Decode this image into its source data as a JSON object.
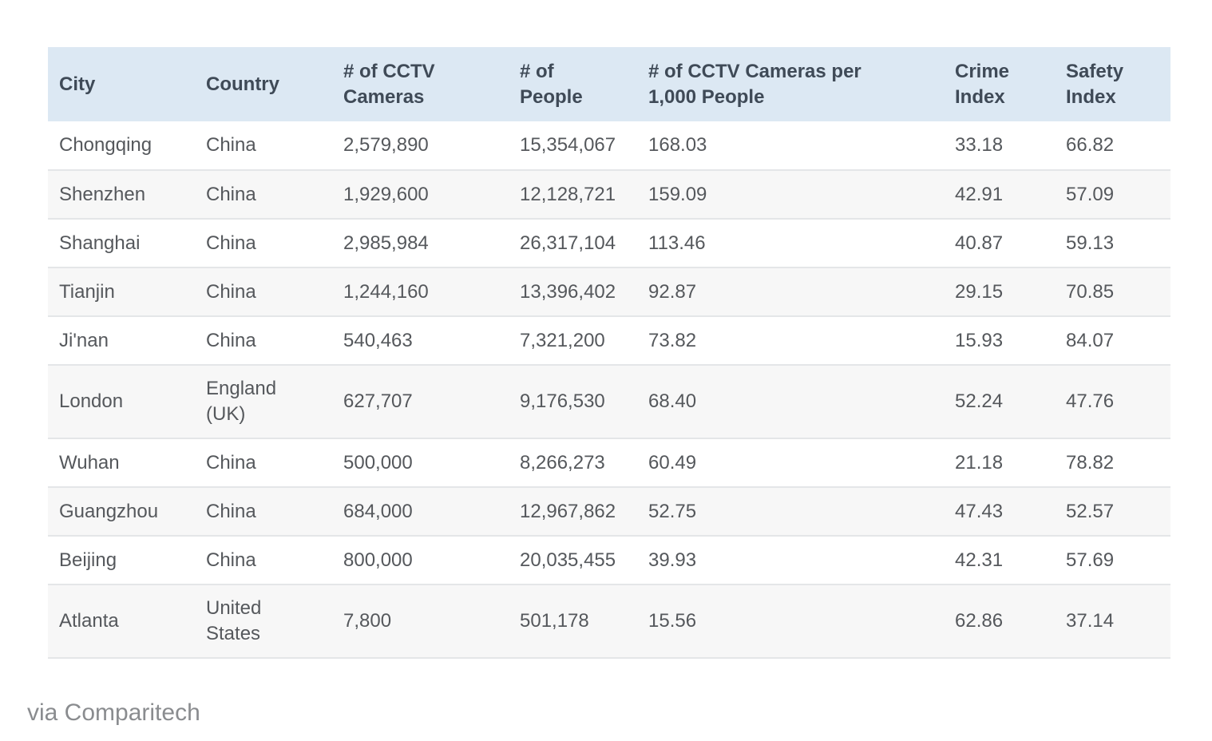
{
  "table": {
    "headers": [
      [
        "City"
      ],
      [
        "Country"
      ],
      [
        "# of CCTV",
        "Cameras"
      ],
      [
        "# of",
        "People"
      ],
      [
        "# of CCTV Cameras per",
        "1,000 People"
      ],
      [
        "Crime",
        "Index"
      ],
      [
        "Safety",
        "Index"
      ]
    ],
    "rows": [
      [
        [
          "Chongqing"
        ],
        [
          "China"
        ],
        [
          "2,579,890"
        ],
        [
          "15,354,067"
        ],
        [
          "168.03"
        ],
        [
          "33.18"
        ],
        [
          "66.82"
        ]
      ],
      [
        [
          "Shenzhen"
        ],
        [
          "China"
        ],
        [
          "1,929,600"
        ],
        [
          "12,128,721"
        ],
        [
          "159.09"
        ],
        [
          "42.91"
        ],
        [
          "57.09"
        ]
      ],
      [
        [
          "Shanghai"
        ],
        [
          "China"
        ],
        [
          "2,985,984"
        ],
        [
          "26,317,104"
        ],
        [
          "113.46"
        ],
        [
          "40.87"
        ],
        [
          "59.13"
        ]
      ],
      [
        [
          "Tianjin"
        ],
        [
          "China"
        ],
        [
          "1,244,160"
        ],
        [
          "13,396,402"
        ],
        [
          "92.87"
        ],
        [
          "29.15"
        ],
        [
          "70.85"
        ]
      ],
      [
        [
          "Ji'nan"
        ],
        [
          "China"
        ],
        [
          "540,463"
        ],
        [
          "7,321,200"
        ],
        [
          "73.82"
        ],
        [
          "15.93"
        ],
        [
          "84.07"
        ]
      ],
      [
        [
          "London"
        ],
        [
          "England",
          "(UK)"
        ],
        [
          "627,707"
        ],
        [
          "9,176,530"
        ],
        [
          "68.40"
        ],
        [
          "52.24"
        ],
        [
          "47.76"
        ]
      ],
      [
        [
          "Wuhan"
        ],
        [
          "China"
        ],
        [
          "500,000"
        ],
        [
          "8,266,273"
        ],
        [
          "60.49"
        ],
        [
          "21.18"
        ],
        [
          "78.82"
        ]
      ],
      [
        [
          "Guangzhou"
        ],
        [
          "China"
        ],
        [
          "684,000"
        ],
        [
          "12,967,862"
        ],
        [
          "52.75"
        ],
        [
          "47.43"
        ],
        [
          "52.57"
        ]
      ],
      [
        [
          "Beijing"
        ],
        [
          "China"
        ],
        [
          "800,000"
        ],
        [
          "20,035,455"
        ],
        [
          "39.93"
        ],
        [
          "42.31"
        ],
        [
          "57.69"
        ]
      ],
      [
        [
          "Atlanta"
        ],
        [
          "United",
          "States"
        ],
        [
          "7,800"
        ],
        [
          "501,178"
        ],
        [
          "15.56"
        ],
        [
          "62.86"
        ],
        [
          "37.14"
        ]
      ]
    ]
  },
  "source": "via Comparitech",
  "colors": {
    "header_background": "#dce8f3",
    "header_text": "#3f4a57",
    "cell_text": "#55585c",
    "row_alt": "#f7f7f7",
    "row_border": "#e4e6e8",
    "source_text": "#8a8c8f"
  }
}
